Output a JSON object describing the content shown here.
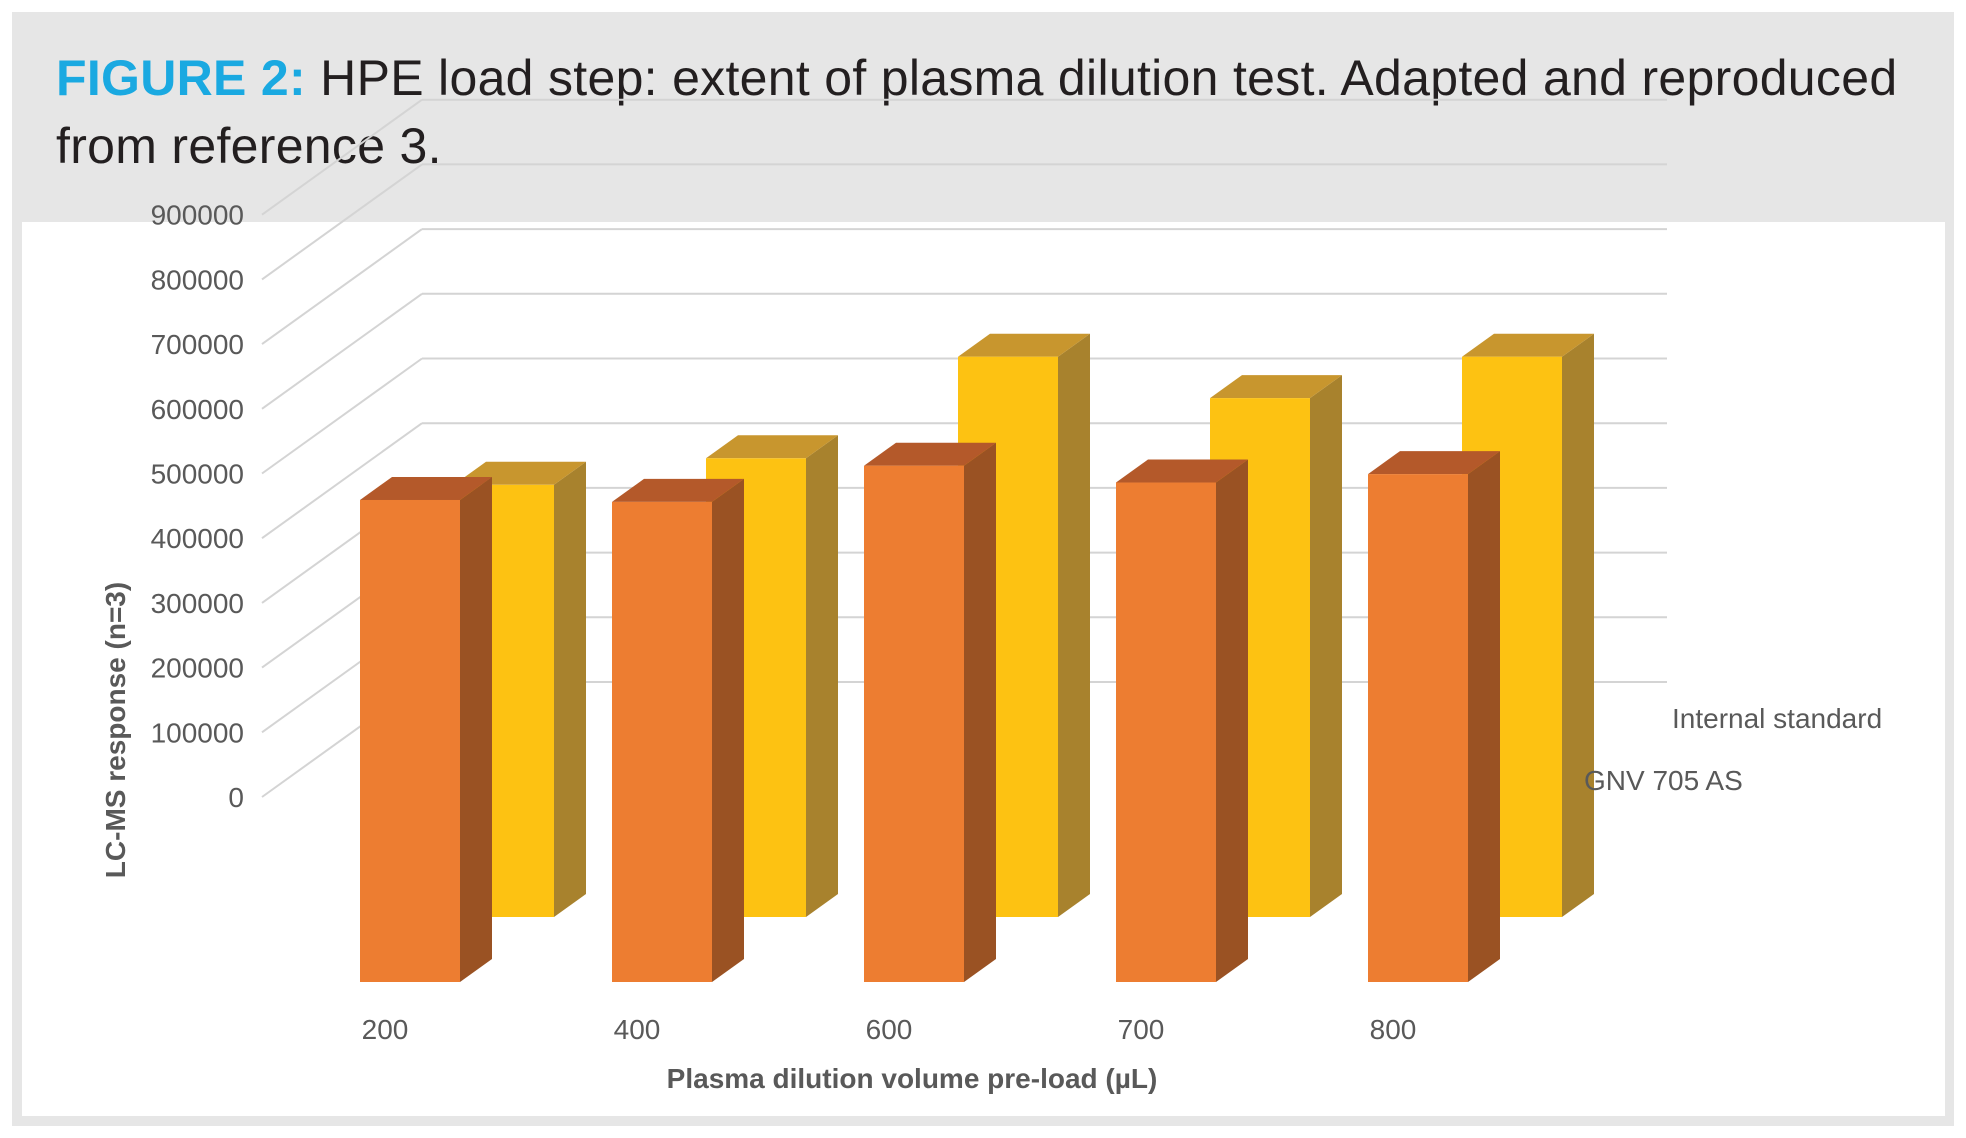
{
  "caption": {
    "label": "FIGURE 2:",
    "text": "HPE load step: extent of plasma dilution test. Adapted and reproduced from reference 3."
  },
  "colors": {
    "caption_label": "#1aa9e1",
    "frame_background": "#e6e6e6",
    "gridline": "#d4d4d4",
    "gnv_front": "#ed7d31",
    "gnv_side": "#9a5223",
    "gnv_top": "#b4592a",
    "is_front": "#fdc212",
    "is_side": "#a8822d",
    "is_top": "#c8962e"
  },
  "chart_data": {
    "type": "bar",
    "style": "3d-clustered-depth",
    "categories": [
      "200",
      "400",
      "600",
      "700",
      "800"
    ],
    "xlabel": "Plasma dilution volume pre-load (µL)",
    "ylabel": "LC-MS response (n=3)",
    "ylim": [
      0,
      900000
    ],
    "yticks": [
      "0",
      "100000",
      "200000",
      "300000",
      "400000",
      "500000",
      "600000",
      "700000",
      "800000",
      "900000"
    ],
    "grid": true,
    "series": [
      {
        "name": "GNV 705 AS",
        "values": [
          745000,
          742000,
          798000,
          772000,
          785000
        ]
      },
      {
        "name": "Internal standard",
        "values": [
          668000,
          709000,
          866000,
          802000,
          866000
        ]
      }
    ]
  }
}
